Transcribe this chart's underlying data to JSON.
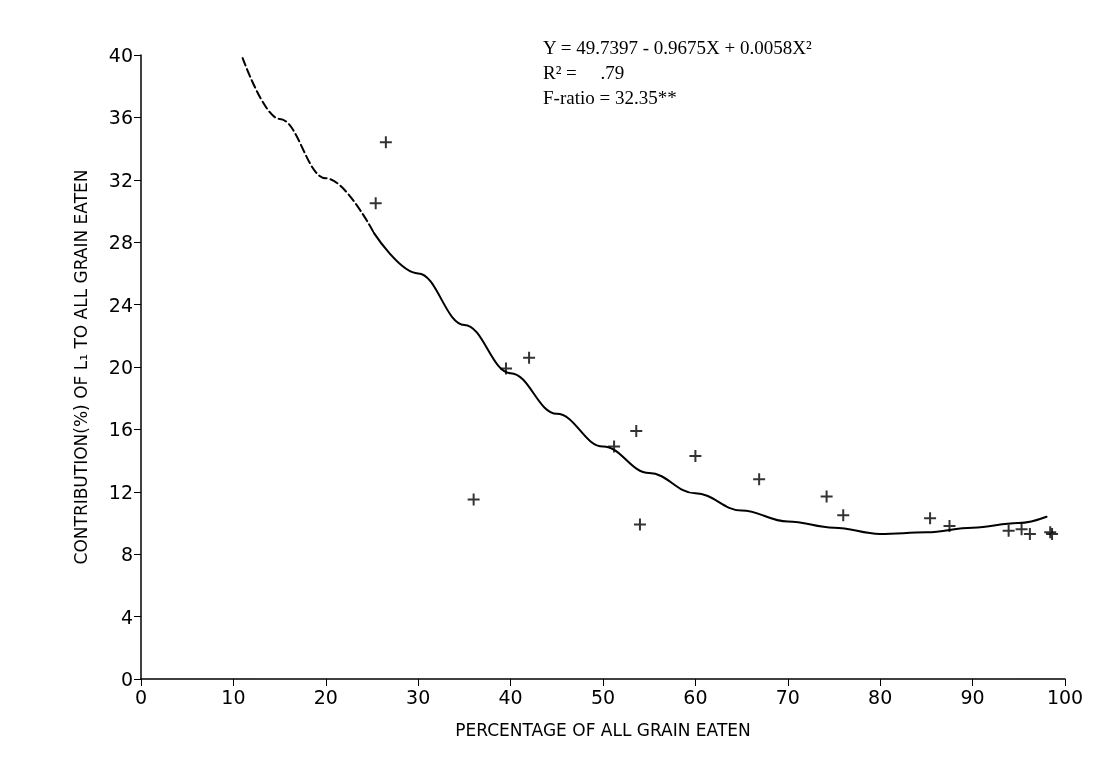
{
  "chart_data": {
    "type": "scatter",
    "xlabel": "PERCENTAGE OF ALL GRAIN EATEN",
    "ylabel": "CONTRIBUTION(%) OF L₁ TO ALL GRAIN EATEN",
    "xlim": [
      0,
      100
    ],
    "xticks": [
      0,
      10,
      20,
      30,
      40,
      50,
      60,
      70,
      80,
      90,
      100
    ],
    "ylim": [
      0,
      40
    ],
    "yticks": [
      0,
      4,
      8,
      12,
      16,
      20,
      24,
      28,
      32,
      36,
      40
    ],
    "grid": false,
    "marker": "cross",
    "annotations": [
      "Y = 49.7397 - 0.9675X + 0.0058X²",
      "R² =     .79",
      "F-ratio = 32.35**"
    ],
    "series": [
      {
        "color": "#000000",
        "x": [
          26.5,
          25.4,
          39.5,
          42.0,
          36.0,
          51.2,
          53.6,
          54.0,
          60.0,
          66.9,
          74.2,
          76.0,
          85.4,
          87.5,
          93.9,
          95.3,
          96.2,
          98.4,
          98.6
        ],
        "values": [
          34.4,
          30.5,
          19.9,
          20.6,
          11.5,
          14.9,
          15.9,
          9.9,
          14.3,
          12.8,
          11.7,
          10.5,
          10.3,
          9.8,
          9.5,
          9.6,
          9.3,
          9.4,
          9.3
        ]
      },
      {
        "type": "line",
        "line_style": "dashed",
        "marker": "none",
        "color": "#000000",
        "x": [
          11,
          15,
          20,
          25.2
        ],
        "values": [
          39.8,
          35.9,
          32.1,
          28.6
        ]
      },
      {
        "type": "line",
        "line_style": "solid",
        "marker": "none",
        "color": "#000000",
        "x": [
          25.2,
          30,
          35,
          40,
          45,
          50,
          55,
          60,
          65,
          70,
          75,
          80,
          85,
          90,
          95,
          98
        ],
        "values": [
          28.6,
          26.0,
          22.7,
          19.6,
          17.0,
          14.9,
          13.2,
          11.9,
          10.8,
          10.1,
          9.7,
          9.3,
          9.4,
          9.7,
          10.0,
          10.4
        ]
      }
    ]
  }
}
